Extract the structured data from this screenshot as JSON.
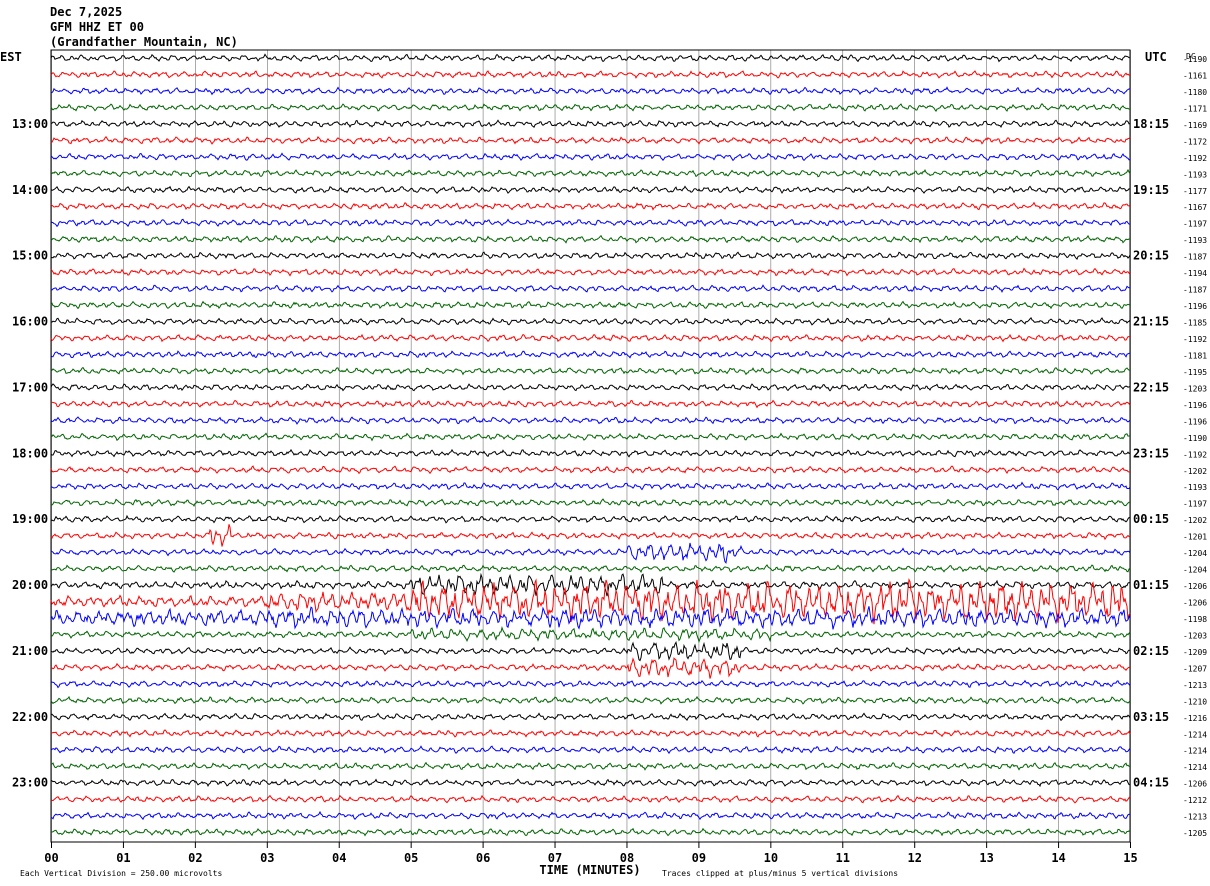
{
  "header": {
    "date": "Dec 7,2025",
    "station": "GFM HHZ ET 00",
    "location": "(Grandfather Mountain, NC)"
  },
  "labels": {
    "left_tz": "EST",
    "right_tz": "UTC",
    "dc_label": "DC",
    "xlabel": "TIME (MINUTES)",
    "scale_note": "Each Vertical Division =  250.00 microvolts",
    "clip_note": "Traces clipped at plus/minus 5 vertical divisions"
  },
  "colors": {
    "trace_cycle": [
      "#000000",
      "#ff0000",
      "#0000ff",
      "#006400"
    ],
    "grid": "#000000"
  },
  "chart_data": {
    "type": "line",
    "subtype": "helicorder",
    "x_ticks": [
      "00",
      "01",
      "02",
      "03",
      "04",
      "05",
      "06",
      "07",
      "08",
      "09",
      "10",
      "11",
      "12",
      "13",
      "14",
      "15"
    ],
    "xlim": [
      0,
      15
    ],
    "trace_count": 48,
    "traces_per_hour": 4,
    "left_hour_labels": [
      "13:00",
      "14:00",
      "15:00",
      "16:00",
      "17:00",
      "18:00",
      "19:00",
      "20:00",
      "21:00",
      "22:00",
      "23:00"
    ],
    "right_hour_labels": [
      "18:15",
      "19:15",
      "20:15",
      "21:15",
      "22:15",
      "23:15",
      "00:15",
      "01:15",
      "02:15",
      "03:15",
      "04:15"
    ],
    "hour_label_first_trace": 4,
    "dc_offsets": [
      "-1190",
      "-1161",
      "-1180",
      "-1171",
      "-1169",
      "-1172",
      "-1192",
      "-1193",
      "-1177",
      "-1167",
      "-1197",
      "-1193",
      "-1187",
      "-1194",
      "-1187",
      "-1196",
      "-1185",
      "-1192",
      "-1181",
      "-1195",
      "-1203",
      "-1196",
      "-1196",
      "-1190",
      "-1192",
      "-1202",
      "-1193",
      "-1197",
      "-1202",
      "-1201",
      "-1204",
      "-1204",
      "-1206",
      "-1206",
      "-1198",
      "-1203",
      "-1209",
      "-1207",
      "-1213",
      "-1210",
      "-1216",
      "-1214",
      "-1214",
      "-1214",
      "-1206",
      "-1212",
      "-1213",
      "-1205"
    ],
    "event": {
      "description_visible": false,
      "traces_affected": [
        29,
        30,
        32,
        33,
        34,
        35,
        36,
        37
      ],
      "strong_shaking_minutes": [
        5.0,
        15.0
      ]
    }
  }
}
